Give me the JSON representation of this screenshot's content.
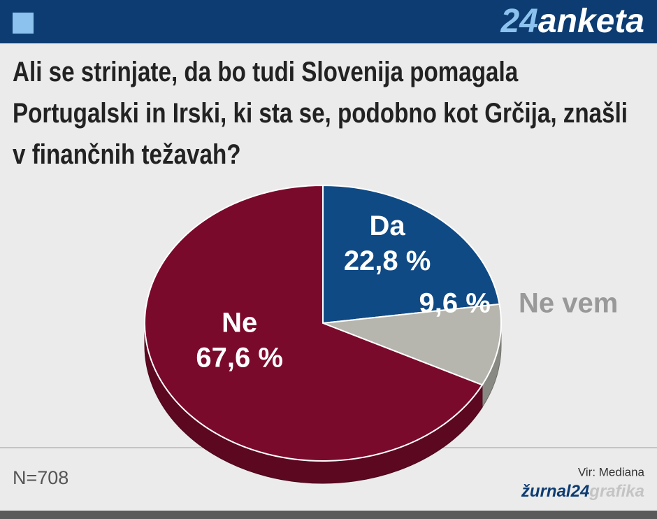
{
  "chart_data": {
    "type": "pie",
    "brand": {
      "number": "24",
      "word": "anketa"
    },
    "title": "Ali se strinjate, da bo tudi Slovenija pomagala Portugalski in Irski, ki sta se, podobno kot Grčija, znašli v finančnih težavah?",
    "categories": [
      "Da",
      "Ne vem",
      "Ne"
    ],
    "values": [
      22.8,
      9.6,
      67.6
    ],
    "value_labels": [
      "22,8 %",
      "9,6 %",
      "67,6 %"
    ],
    "colors": [
      "#0f4a85",
      "#b7b6ae",
      "#7a0a2c"
    ],
    "note": "N=708",
    "source": "Vir: Mediana",
    "footer_brand": {
      "name": "žurnal24",
      "word": "grafika"
    }
  }
}
